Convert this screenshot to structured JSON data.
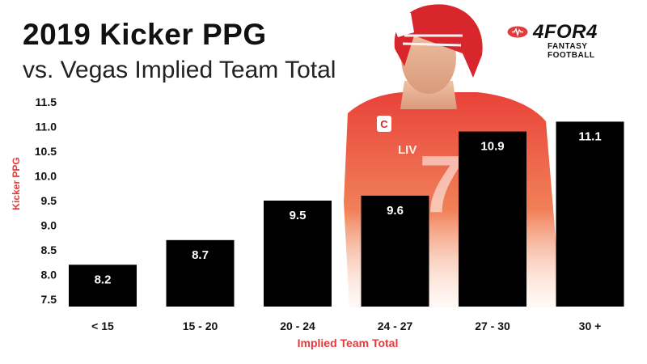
{
  "header": {
    "title": "2019 Kicker PPG",
    "subtitle": "vs. Vegas Implied Team Total"
  },
  "brand": {
    "name": "4FOR4",
    "tagline": "FANTASY FOOTBALL",
    "icon": "football-icon",
    "accent_color": "#e23b3b"
  },
  "player_image": {
    "jersey_number": "7",
    "jersey_badge": "C",
    "patch_text": "LIV"
  },
  "colors": {
    "bar": "#000000",
    "bar_label": "#ffffff",
    "axis_label": "#e23b3b",
    "text": "#111111"
  },
  "chart_data": {
    "type": "bar",
    "categories": [
      "< 15",
      "15 - 20",
      "20 - 24",
      "24 - 27",
      "27 - 30",
      "30 +"
    ],
    "values": [
      8.2,
      8.7,
      9.5,
      9.6,
      10.9,
      11.1
    ],
    "value_labels": [
      "8.2",
      "8.7",
      "9.5",
      "9.6",
      "10.9",
      "11.1"
    ],
    "ylim": [
      7.5,
      11.5
    ],
    "yticks": [
      "7.5",
      "8.0",
      "8.5",
      "9.0",
      "9.5",
      "10.0",
      "10.5",
      "11.0",
      "11.5"
    ],
    "xlabel": "Implied Team Total",
    "ylabel": "Kicker PPG",
    "grid": false,
    "legend": "none"
  }
}
